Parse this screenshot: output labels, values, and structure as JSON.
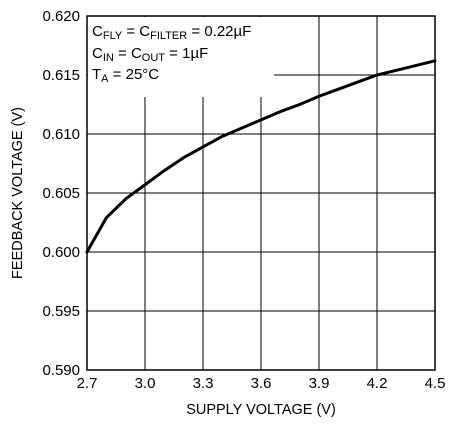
{
  "chart_data": {
    "type": "line",
    "xlabel": "SUPPLY VOLTAGE (V)",
    "ylabel": "FEEDBACK VOLTAGE (V)",
    "xlim": [
      2.7,
      4.5
    ],
    "ylim": [
      0.59,
      0.62
    ],
    "xticks": [
      2.7,
      3.0,
      3.3,
      3.6,
      3.9,
      4.2,
      4.5
    ],
    "yticks": [
      0.59,
      0.595,
      0.6,
      0.605,
      0.61,
      0.615,
      0.62
    ],
    "xtick_labels": [
      "2.7",
      "3.0",
      "3.3",
      "3.6",
      "3.9",
      "4.2",
      "4.5"
    ],
    "ytick_labels": [
      "0.590",
      "0.595",
      "0.600",
      "0.605",
      "0.610",
      "0.615",
      "0.620"
    ],
    "grid": true,
    "annotations": [
      {
        "parts": [
          [
            "C",
            ""
          ],
          [
            "FLY",
            "sub"
          ],
          [
            " = C",
            ""
          ],
          [
            "FILTER",
            "sub"
          ],
          [
            " = 0.22µF",
            ""
          ]
        ]
      },
      {
        "parts": [
          [
            "C",
            ""
          ],
          [
            "IN",
            "sub"
          ],
          [
            " = C",
            ""
          ],
          [
            "OUT",
            "sub"
          ],
          [
            " = 1µF",
            ""
          ]
        ]
      },
      {
        "parts": [
          [
            "T",
            ""
          ],
          [
            "A",
            "sub"
          ],
          [
            " = 25°C",
            ""
          ]
        ]
      }
    ],
    "series": [
      {
        "color": "#000000",
        "x": [
          2.7,
          2.8,
          2.9,
          3.0,
          3.1,
          3.2,
          3.3,
          3.4,
          3.5,
          3.6,
          3.7,
          3.8,
          3.9,
          4.0,
          4.1,
          4.2,
          4.3,
          4.4,
          4.5
        ],
        "y": [
          0.6,
          0.6029,
          0.6045,
          0.6057,
          0.6069,
          0.608,
          0.6089,
          0.6098,
          0.6105,
          0.6112,
          0.6119,
          0.6125,
          0.6132,
          0.6138,
          0.6144,
          0.615,
          0.6154,
          0.6158,
          0.6162
        ]
      }
    ]
  }
}
